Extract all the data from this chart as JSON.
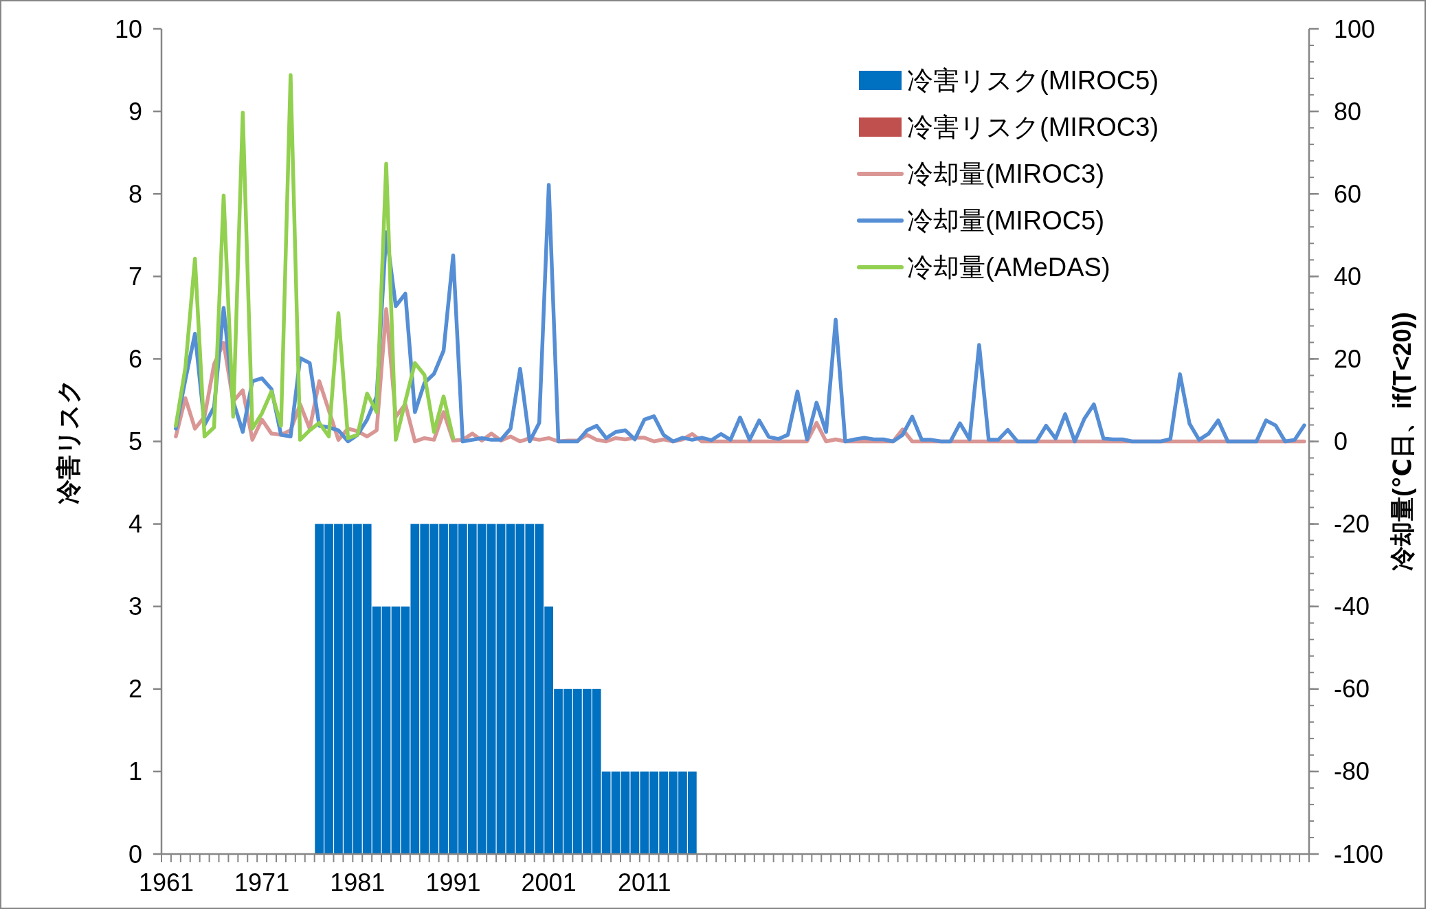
{
  "chart_data": {
    "type": "bar",
    "ylabel": "冷害リスク",
    "y2label": "冷却量(℃日、if(T<20))",
    "ylim": [
      0,
      10
    ],
    "yticks": [
      0,
      1,
      2,
      3,
      4,
      5,
      6,
      7,
      8,
      9,
      10
    ],
    "y2lim": [
      -100,
      100
    ],
    "y2ticks": [
      -100,
      -80,
      -60,
      -40,
      -20,
      0,
      20,
      40,
      60,
      80,
      100
    ],
    "legend": "top right",
    "categories": [
      "1961",
      null,
      null,
      null,
      null,
      null,
      null,
      null,
      null,
      null,
      "1971",
      null,
      null,
      null,
      null,
      null,
      null,
      null,
      null,
      null,
      "1981",
      null,
      null,
      null,
      null,
      null,
      null,
      null,
      null,
      null,
      "1991",
      null,
      null,
      null,
      null,
      null,
      null,
      null,
      null,
      null,
      "2001",
      null,
      null,
      null,
      null,
      null,
      null,
      null,
      null,
      null,
      "2011",
      null,
      null,
      null,
      null,
      null,
      null,
      null,
      null,
      null,
      null,
      null,
      null,
      null,
      null,
      null,
      null,
      null,
      null,
      null,
      null,
      null,
      null,
      null,
      null,
      null,
      null,
      null,
      null,
      null,
      null,
      null,
      null,
      null,
      null,
      null,
      null,
      null,
      null,
      null,
      null,
      null,
      null,
      null,
      null,
      null,
      null,
      null,
      null,
      null,
      null,
      null,
      null,
      null,
      null,
      null,
      null,
      null,
      null,
      null,
      null,
      null,
      null,
      null,
      null,
      null,
      null,
      null,
      null,
      null
    ],
    "series": [
      {
        "name": "冷害リスク(MIROC5)",
        "color": "#0070c0",
        "values": [
          null,
          null,
          null,
          null,
          null,
          null,
          null,
          null,
          null,
          null,
          null,
          null,
          null,
          null,
          null,
          null,
          4,
          4,
          4,
          4,
          4,
          4,
          3,
          3,
          3,
          3,
          4,
          4,
          4,
          4,
          4,
          4,
          4,
          4,
          4,
          4,
          4,
          4,
          4,
          4,
          3,
          2,
          2,
          2,
          2,
          2,
          1,
          1,
          1,
          1,
          1,
          1,
          1,
          1,
          1,
          1,
          null,
          null,
          null,
          null,
          null,
          null,
          null,
          null,
          null,
          null,
          null,
          null,
          null,
          null,
          null,
          null,
          null,
          null,
          null,
          null,
          null,
          null,
          null,
          null,
          null,
          null,
          null,
          null,
          null,
          null,
          null,
          null,
          null,
          null,
          null,
          null,
          null,
          null,
          null,
          null,
          null,
          null,
          null,
          null,
          null,
          null,
          null,
          null,
          null,
          null,
          null,
          null,
          null,
          null,
          null,
          null,
          null,
          null,
          null,
          null,
          null,
          null,
          null,
          null
        ]
      },
      {
        "name": "冷害リスク(MIROC3)",
        "color": "#c0504d",
        "values": [
          null,
          null,
          null,
          null,
          null,
          null,
          null,
          null,
          null,
          null,
          null,
          null,
          null,
          null,
          null,
          null,
          null,
          null,
          null,
          null,
          null,
          null,
          null,
          null,
          null,
          null,
          null,
          null,
          null,
          null,
          null,
          null,
          null,
          null,
          null,
          null,
          null,
          null,
          null,
          null,
          null,
          null,
          null,
          null,
          null,
          null,
          null,
          null,
          null,
          null,
          null,
          null,
          null,
          null,
          null,
          null,
          null,
          null,
          null,
          null,
          null,
          null,
          null,
          null,
          null,
          null,
          null,
          null,
          null,
          null,
          null,
          null,
          null,
          null,
          null,
          null,
          null,
          null,
          null,
          null,
          null,
          null,
          null,
          null,
          null,
          null,
          null,
          null,
          null,
          null,
          null,
          null,
          null,
          null,
          null,
          null,
          null,
          null,
          null,
          null,
          null,
          null,
          null,
          null,
          null,
          null,
          null,
          null,
          null,
          null,
          null,
          null,
          null,
          null,
          null,
          null,
          null,
          null,
          null,
          null
        ]
      },
      {
        "name": "冷却量(MIROC3)",
        "type": "line",
        "axis": "y2",
        "color": "#d99694",
        "values": [
          null,
          1.2,
          10.5,
          3.1,
          6,
          18.7,
          23.9,
          9.7,
          12.4,
          0.4,
          5.3,
          1.9,
          1.6,
          2.7,
          9,
          3.1,
          14.6,
          7.5,
          0.4,
          3.1,
          2.5,
          1.2,
          2.7,
          32.1,
          6,
          9,
          0,
          0.8,
          0.4,
          7.1,
          0.2,
          0.4,
          1.9,
          0.2,
          1.9,
          0.2,
          1.2,
          0,
          0.8,
          0.4,
          0.8,
          0,
          0.2,
          0.2,
          1.6,
          0.4,
          0,
          0.8,
          0.5,
          0.9,
          0.9,
          0,
          0.5,
          0,
          0.5,
          1.8,
          0,
          0,
          0,
          0,
          0,
          0,
          0,
          0,
          0,
          0,
          0,
          0,
          4.5,
          0,
          0.5,
          0,
          0,
          0,
          0,
          0,
          0,
          2.9,
          0,
          0,
          0,
          0,
          0,
          0,
          0,
          0,
          0,
          0,
          0,
          0,
          0,
          0,
          0,
          0,
          0,
          0,
          0,
          0,
          0,
          0,
          0,
          0,
          0,
          0,
          0,
          0,
          0,
          0,
          0,
          0,
          0,
          0,
          0,
          0,
          0,
          0,
          0,
          0,
          0,
          0
        ]
      },
      {
        "name": "冷却量(MIROC5)",
        "type": "line",
        "axis": "y2",
        "color": "#558ed5",
        "values": [
          null,
          3.1,
          15,
          26.1,
          4,
          8.3,
          32.4,
          9.7,
          2.3,
          14.6,
          15.3,
          12.7,
          1.6,
          1.2,
          20.2,
          19,
          3.8,
          3.4,
          2.7,
          0,
          1.6,
          5.3,
          10.9,
          50.7,
          32.8,
          35.8,
          7.1,
          14.2,
          16.4,
          22,
          45.1,
          0,
          0.4,
          0.8,
          0.4,
          0.4,
          3.1,
          17.6,
          0,
          4.5,
          62.2,
          0,
          0,
          0,
          2.7,
          3.8,
          0.8,
          2.3,
          2.7,
          0.5,
          5.3,
          6.1,
          1.6,
          0,
          0.9,
          0.4,
          0.9,
          0.3,
          1.8,
          0.4,
          5.8,
          0.4,
          5.1,
          1.1,
          0.6,
          1.6,
          12.1,
          0.5,
          9.4,
          2.3,
          29.5,
          0,
          0.5,
          0.9,
          0.5,
          0.5,
          0,
          1.6,
          6,
          0.4,
          0.4,
          0,
          0,
          4.4,
          0.5,
          23.4,
          0.4,
          0.4,
          2.8,
          0,
          0,
          0,
          3.8,
          0.7,
          6.6,
          0,
          5.5,
          9,
          0.7,
          0.5,
          0.5,
          0,
          0,
          0,
          0,
          0.6,
          16.3,
          4.3,
          0.4,
          1.9,
          5.1,
          0,
          0,
          0,
          0,
          5.1,
          3.9,
          0,
          0.4,
          3.9
        ]
      },
      {
        "name": "冷却量(AMeDAS)",
        "type": "line",
        "axis": "y2",
        "color": "#92d050",
        "values": [
          null,
          3.8,
          17.9,
          44.3,
          1.2,
          3.4,
          59.6,
          6,
          79.7,
          3.1,
          6.8,
          12.1,
          3.8,
          88.8,
          0.4,
          2.7,
          4.5,
          1.2,
          31.1,
          0.8,
          1.6,
          11.6,
          7.1,
          67.3,
          0.4,
          9.7,
          19,
          16.1,
          2.3,
          10.9,
          0.8,
          null,
          null,
          null,
          null,
          null,
          null,
          null,
          null,
          null,
          null,
          null,
          null,
          null,
          null,
          null,
          null,
          null,
          null,
          null,
          null,
          null,
          null,
          null,
          null,
          null,
          null,
          null,
          null,
          null,
          null,
          null,
          null,
          null,
          null,
          null,
          null,
          null,
          null,
          null,
          null,
          null,
          null,
          null,
          null,
          null,
          null,
          null,
          null,
          null,
          null,
          null,
          null,
          null,
          null,
          null,
          null,
          null,
          null,
          null,
          null,
          null,
          null,
          null,
          null,
          null,
          null,
          null,
          null,
          null,
          null,
          null,
          null,
          null,
          null,
          null,
          null,
          null,
          null,
          null,
          null,
          null,
          null,
          null,
          null,
          null,
          null,
          null,
          null,
          null
        ]
      }
    ]
  }
}
